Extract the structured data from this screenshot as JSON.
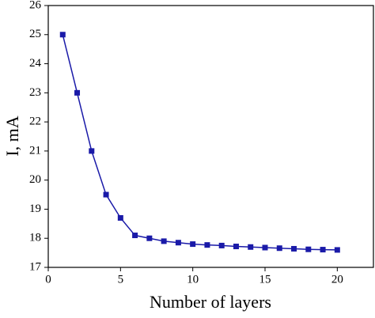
{
  "chart_data": {
    "type": "line",
    "x_label": "Number of layers",
    "y_label": "I, mA",
    "x": [
      1,
      2,
      3,
      4,
      5,
      6,
      7,
      8,
      9,
      10,
      11,
      12,
      13,
      14,
      15,
      16,
      17,
      18,
      19,
      20
    ],
    "series": [
      {
        "color": "#1a1aa8",
        "values": [
          25,
          23,
          21,
          19.5,
          18.7,
          18.1,
          18.0,
          17.9,
          17.85,
          17.8,
          17.77,
          17.75,
          17.72,
          17.7,
          17.68,
          17.66,
          17.64,
          17.62,
          17.61,
          17.6
        ]
      }
    ],
    "xlim": [
      0,
      22.5
    ],
    "xticks": [
      0,
      5,
      10,
      15,
      20
    ],
    "ylim": [
      17,
      26
    ],
    "yticks": [
      17,
      18,
      19,
      20,
      21,
      22,
      23,
      24,
      25,
      26
    ]
  }
}
